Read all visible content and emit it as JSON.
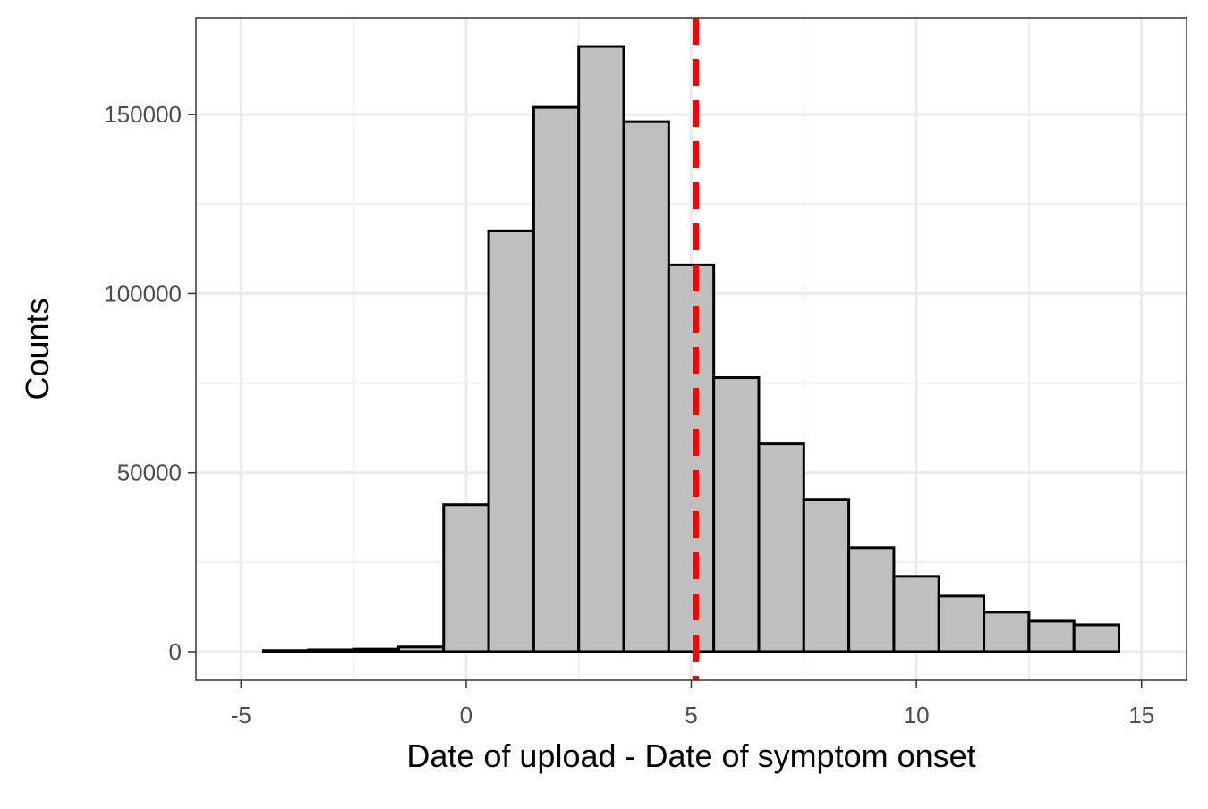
{
  "chart_data": {
    "type": "bar",
    "subtype": "histogram",
    "title": "",
    "xlabel": "Date of upload - Date of symptom onset",
    "ylabel": "Counts",
    "xlim": [
      -6,
      16
    ],
    "ylim": [
      -8000,
      177000
    ],
    "x_ticks": [
      -5,
      0,
      5,
      10,
      15
    ],
    "x_tick_labels": [
      "-5",
      "0",
      "5",
      "10",
      "15"
    ],
    "y_ticks": [
      0,
      50000,
      100000,
      150000
    ],
    "y_tick_labels": [
      "0",
      "50000",
      "100000",
      "150000"
    ],
    "x_minor_ticks": [
      -2.5,
      2.5,
      7.5,
      12.5
    ],
    "y_minor_ticks": [
      25000,
      75000,
      125000
    ],
    "bin_width": 1,
    "bins": [
      {
        "x": -4,
        "count": 300
      },
      {
        "x": -3,
        "count": 500
      },
      {
        "x": -2,
        "count": 700
      },
      {
        "x": -1,
        "count": 1300
      },
      {
        "x": 0,
        "count": 41000
      },
      {
        "x": 1,
        "count": 117500
      },
      {
        "x": 2,
        "count": 152000
      },
      {
        "x": 3,
        "count": 169000
      },
      {
        "x": 4,
        "count": 148000
      },
      {
        "x": 5,
        "count": 108000
      },
      {
        "x": 6,
        "count": 76500
      },
      {
        "x": 7,
        "count": 58000
      },
      {
        "x": 8,
        "count": 42500
      },
      {
        "x": 9,
        "count": 29000
      },
      {
        "x": 10,
        "count": 21000
      },
      {
        "x": 11,
        "count": 15500
      },
      {
        "x": 12,
        "count": 11000
      },
      {
        "x": 13,
        "count": 8500
      },
      {
        "x": 14,
        "count": 7500
      }
    ],
    "reference_line": {
      "x": 5.1,
      "style": "dashed",
      "color": "#ff0000"
    },
    "bar_fill": "#bfbfbf",
    "bar_stroke": "#000000",
    "grid": true,
    "panel_border": "#333333",
    "grid_color": "#ebebeb"
  }
}
